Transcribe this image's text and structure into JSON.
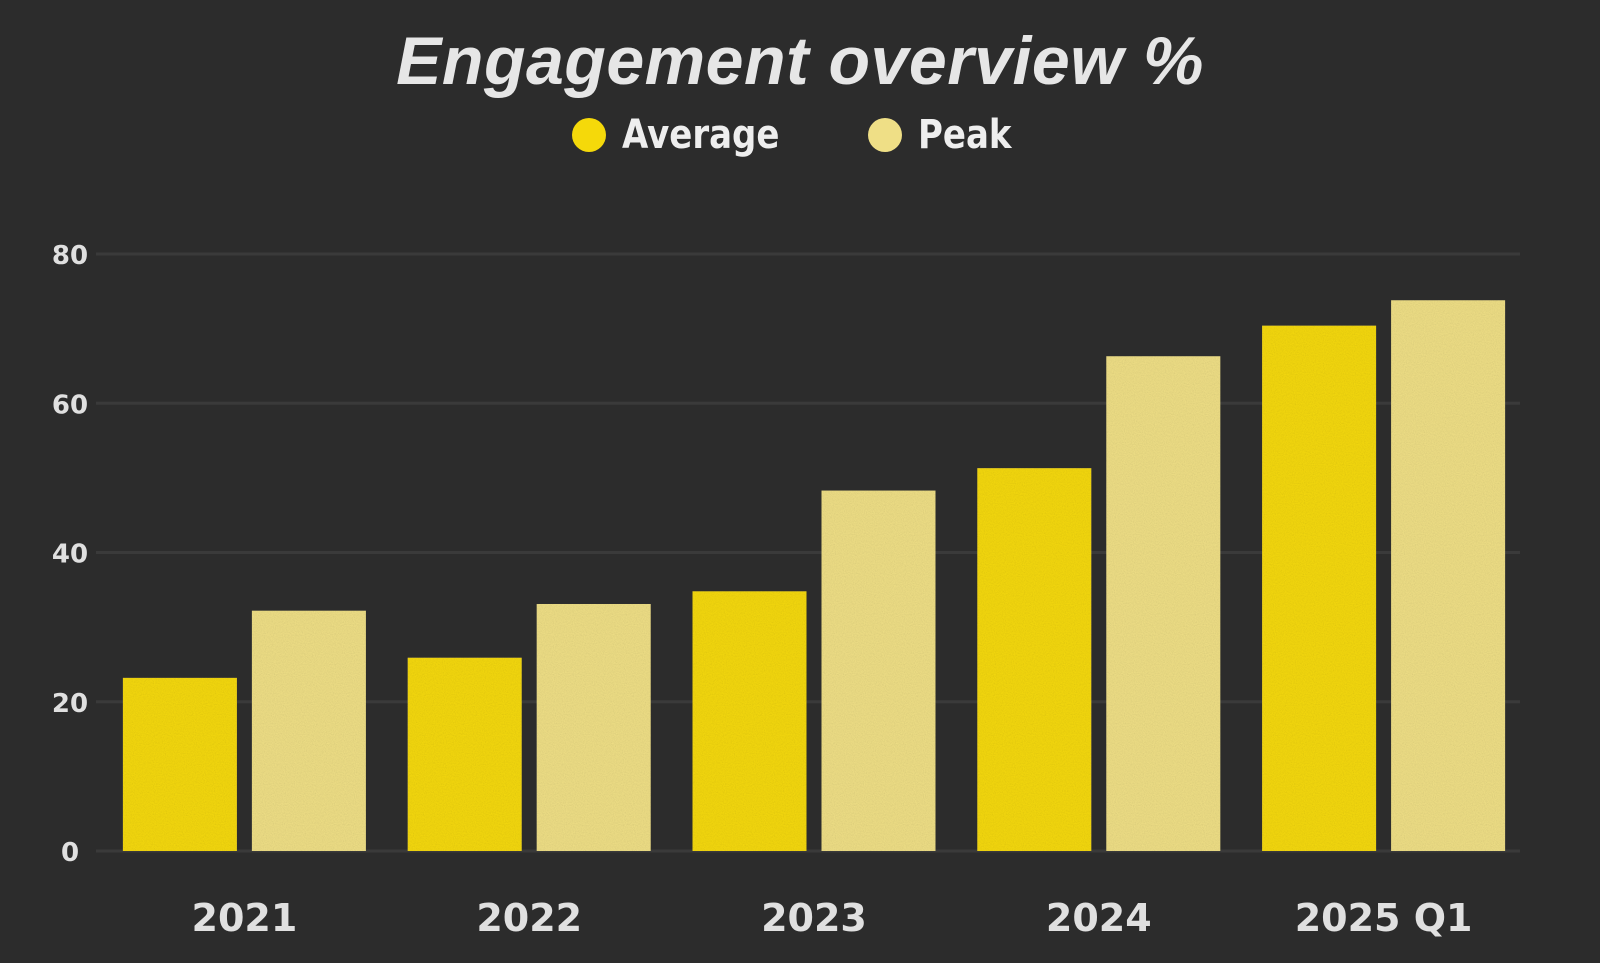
{
  "chart_data": {
    "type": "bar",
    "title": "Engagement overview %",
    "xlabel": "",
    "ylabel": "",
    "categories": [
      "2021",
      "2022",
      "2023",
      "2024",
      "2025 Q1"
    ],
    "series": [
      {
        "name": "Average",
        "values": [
          23.2,
          25.9,
          34.8,
          51.3,
          70.4
        ],
        "color": "#f5d90a"
      },
      {
        "name": "Peak",
        "values": [
          32.2,
          33.1,
          48.3,
          66.3,
          73.8
        ],
        "color": "#efdf86"
      }
    ],
    "ylim": [
      0,
      80
    ],
    "yticks": [
      "0",
      "20",
      "40",
      "60",
      "80"
    ],
    "grid": true,
    "legend_position": "top-center"
  },
  "colors": {
    "background": "#2c2c2c",
    "grid": "#3a3a3a",
    "text": "#e6e6e6"
  }
}
